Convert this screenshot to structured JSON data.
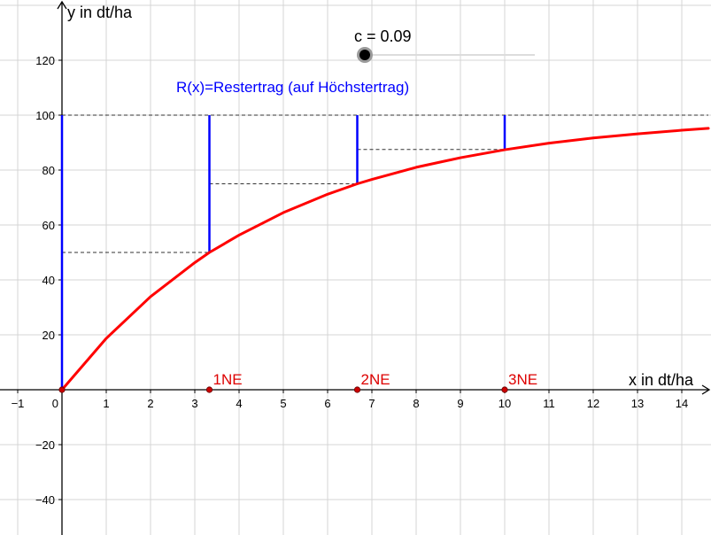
{
  "chart_data": {
    "type": "line",
    "xlabel": "x in dt/ha",
    "ylabel": "y in dt/ha",
    "xlim": [
      -1.4,
      14.6
    ],
    "ylim": [
      -52,
      140
    ],
    "x_ticks": [
      -1,
      1,
      2,
      3,
      4,
      5,
      6,
      7,
      8,
      9,
      10,
      11,
      12,
      13,
      14
    ],
    "y_ticks": [
      -40,
      -20,
      20,
      40,
      60,
      80,
      100,
      120
    ],
    "origin_label": "0",
    "grid": true,
    "slider": {
      "label": "c = 0.09",
      "value": 0.09
    },
    "annotation": "R(x)=Restertrag (auf Höchstertrag)",
    "series": [
      {
        "function": "100*(1-10^(-0.09*x))",
        "color": "#ff0000",
        "x": [
          0,
          1,
          2,
          3,
          3.33,
          4,
          5,
          6,
          6.67,
          7,
          8,
          9,
          10,
          11,
          12,
          13,
          14,
          14.6
        ],
        "y": [
          0,
          18.7,
          33.9,
          46.3,
          50,
          56.3,
          64.5,
          71.2,
          75,
          76.6,
          81.0,
          84.5,
          87.4,
          89.8,
          91.7,
          93.2,
          94.5,
          95.2
        ]
      }
    ],
    "points": [
      {
        "label": "1NE",
        "x": 3.33,
        "y": 0
      },
      {
        "label": "2NE",
        "x": 6.67,
        "y": 0
      },
      {
        "label": "3NE",
        "x": 10,
        "y": 0
      }
    ],
    "remainder_segments": [
      {
        "x": 0,
        "y_from": 0,
        "y_to": 100
      },
      {
        "x": 3.33,
        "y_from": 50,
        "y_to": 100
      },
      {
        "x": 6.67,
        "y_from": 75,
        "y_to": 100
      },
      {
        "x": 10,
        "y_from": 87.5,
        "y_to": 100
      }
    ],
    "dashed_levels": [
      {
        "y": 100,
        "x_from": 0,
        "x_to": 14.6
      },
      {
        "y": 50,
        "x_from": 0,
        "x_to": 3.33
      },
      {
        "y": 75,
        "x_from": 3.33,
        "x_to": 6.67
      },
      {
        "y": 87.5,
        "x_from": 6.67,
        "x_to": 10
      }
    ]
  },
  "colors": {
    "curve": "#ff0000",
    "segments": "#0000ff",
    "annotation": "#0000ff",
    "points": "#cc0000",
    "point_labels": "#dd0000",
    "grid": "#d4d4d4"
  }
}
